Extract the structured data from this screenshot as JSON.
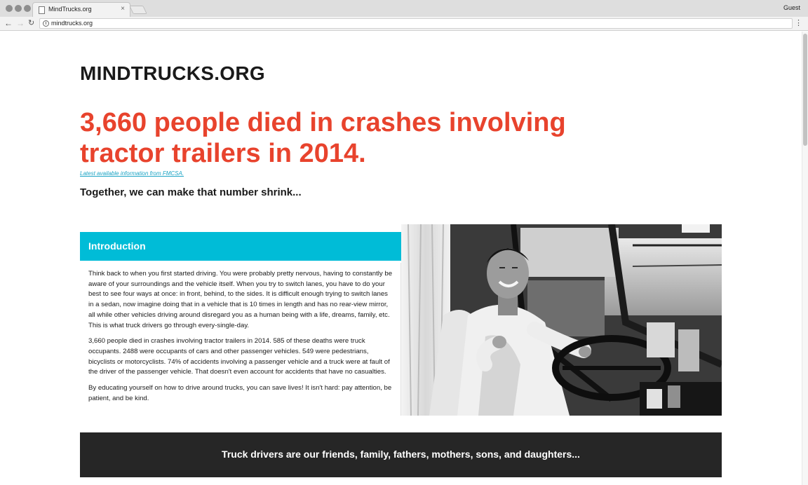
{
  "browser": {
    "tab_title": "MindTrucks.org",
    "tab_close": "×",
    "profile": "Guest",
    "url": "mindtrucks.org",
    "back_icon": "back-arrow-icon",
    "forward_icon": "forward-arrow-icon",
    "reload_icon": "reload-icon",
    "menu_icon": "kebab-menu-icon"
  },
  "page": {
    "logo": "MINDTRUCKS.ORG",
    "headline": "3,660 people died in crashes involving tractor trailers in 2014.",
    "source_link": "Latest available information from FMCSA.",
    "tagline": "Together, we can make that number shrink...",
    "accent_color": "#00bcd7",
    "headline_color": "#e8432d"
  },
  "intro": {
    "heading": "Introduction",
    "paragraphs": [
      "Think back to when you first started driving. You were probably pretty nervous, having to constantly be aware of your surroundings and the vehicle itself. When you try to switch lanes, you have to do your best to see four ways at once: in front, behind, to the sides. It is difficult enough trying to switch lanes in a sedan, now imagine doing that in a vehicle that is 10 times in length and has no rear-view mirror, all while other vehicles driving around disregard you as a human being with a life, dreams, family, etc. This is what truck drivers go through every-single-day.",
      "3,660 people died in crashes involving tractor trailers in 2014. 585 of these deaths were truck occupants. 2488 were occupants of cars and other passenger vehicles. 549 were pedestrians, bicyclists or motorcyclists. 74% of accidents involving a passenger vehicle and a truck were at fault of the driver of the passenger vehicle. That doesn't even account for accidents that have no casualties.",
      "By educating yourself on how to drive around trucks, you can save lives! It isn't hard: pay attention, be patient, and be kind."
    ]
  },
  "banner": {
    "text": "Truck drivers are our friends, family, fathers, mothers, sons, and daughters..."
  }
}
